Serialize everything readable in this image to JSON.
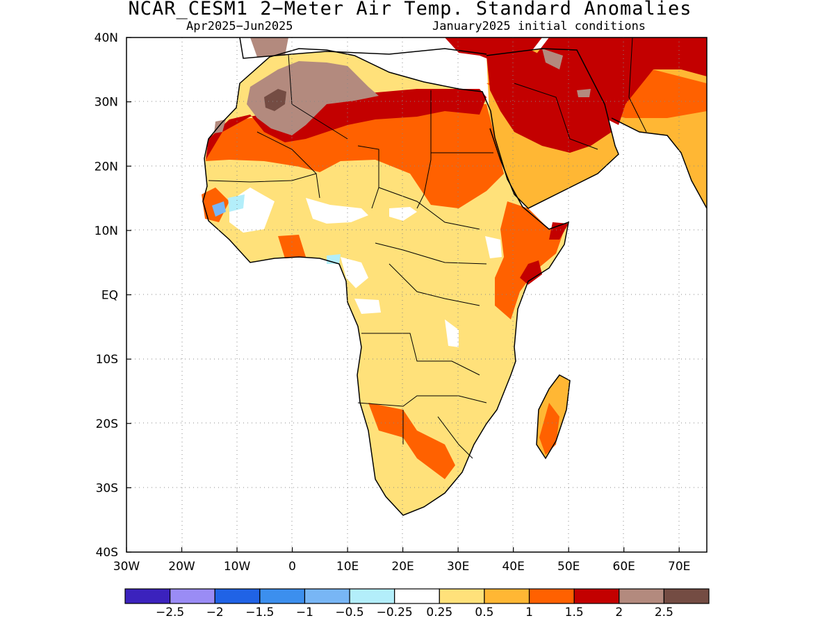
{
  "title": "NCAR_CESM1 2−Meter Air Temp. Standard Anomalies",
  "subtitle_left": "Apr2025−Jun2025",
  "subtitle_right": "January2025 initial conditions",
  "axes": {
    "lon_labels": [
      "30W",
      "20W",
      "10W",
      "0",
      "10E",
      "20E",
      "30E",
      "40E",
      "50E",
      "60E",
      "70E"
    ],
    "lat_labels": [
      "40N",
      "30N",
      "20N",
      "10N",
      "EQ",
      "10S",
      "20S",
      "30S",
      "40S"
    ],
    "lon_range": [
      -30,
      75
    ],
    "lat_range": [
      -40,
      40
    ],
    "grid": "dotted"
  },
  "colorbar": {
    "colors": [
      "#3b22bd",
      "#9a8cf5",
      "#2063e6",
      "#3c8fee",
      "#78b6f5",
      "#b3eefa",
      "#ffffff",
      "#ffe17a",
      "#ffb734",
      "#ff6100",
      "#c30000",
      "#b38a7e",
      "#744c43"
    ],
    "labels": [
      "−2.5",
      "−2",
      "−1.5",
      "−1",
      "−0.5",
      "−0.25",
      "0.25",
      "0.5",
      "1",
      "1.5",
      "2",
      "2.5"
    ]
  },
  "anomaly_regions": [
    {
      "name": "sahara-desert",
      "level": "2 to 2.5"
    },
    {
      "name": "arabia-iran",
      "level": "1.5 to 2"
    },
    {
      "name": "gulf-of-guinea",
      "level": "-0.5 to -0.25"
    },
    {
      "name": "southern-africa",
      "level": "0.5 to 1.5"
    }
  ]
}
